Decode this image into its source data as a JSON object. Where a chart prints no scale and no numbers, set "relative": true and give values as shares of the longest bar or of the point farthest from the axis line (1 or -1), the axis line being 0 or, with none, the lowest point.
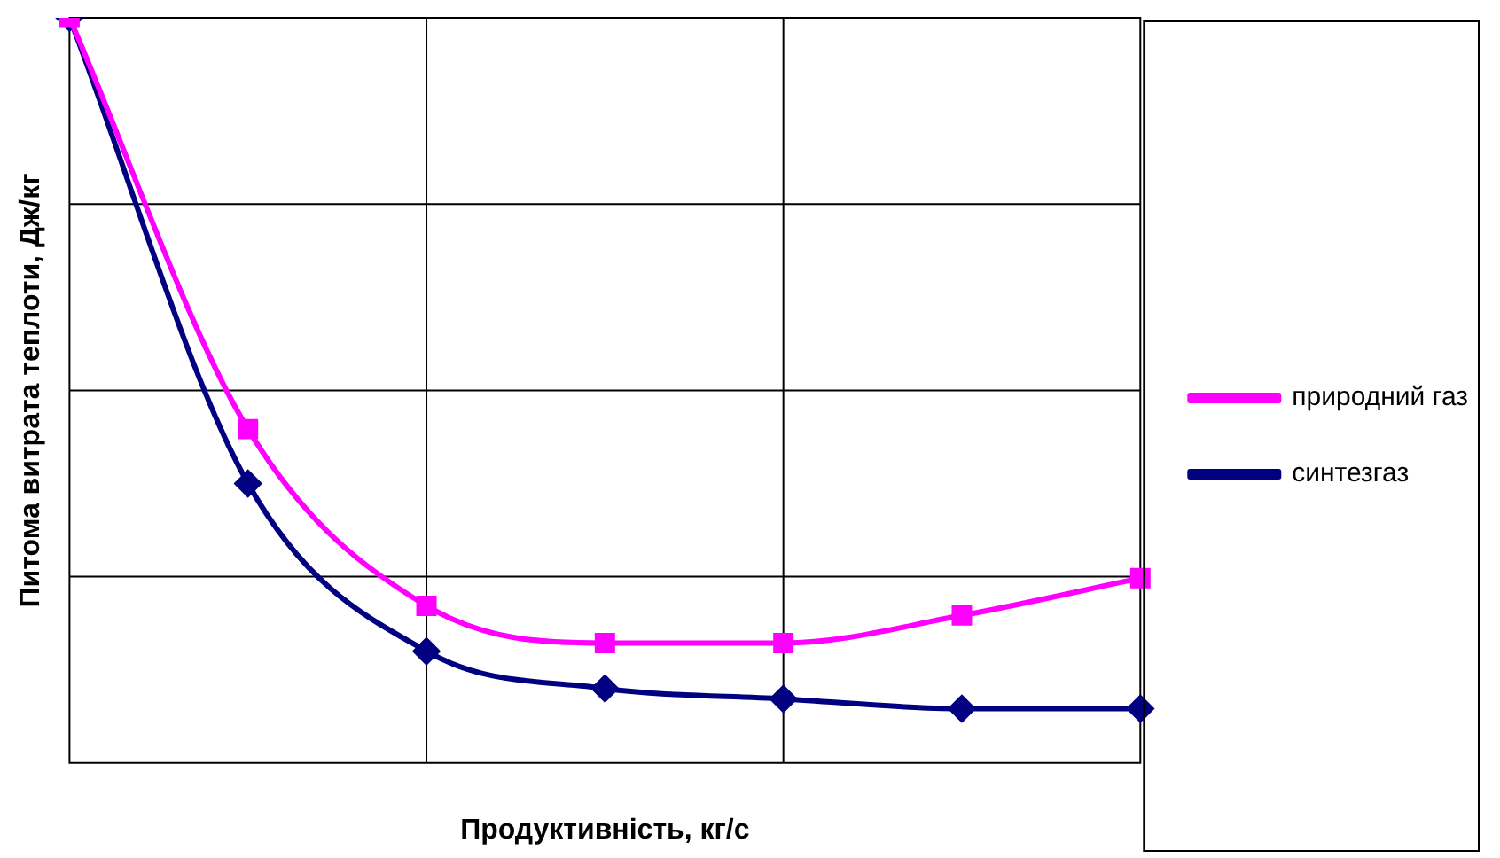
{
  "chart_data": {
    "type": "line",
    "relative": true,
    "xlabel": "Продуктивність, кг/с",
    "ylabel": "Питома витрата теплоти, Дж/кг",
    "categories": [
      null,
      null,
      null,
      null,
      null,
      null,
      null
    ],
    "grid": true,
    "legend": "right",
    "line_style": "solid",
    "series": [
      {
        "name": "синтезгаз",
        "color": "#000080",
        "marker": "diamond",
        "values": [
          1.0,
          0.375,
          0.15,
          0.1,
          0.086,
          0.073,
          0.073
        ]
      },
      {
        "name": "природний газ",
        "color": "#ff00ff",
        "marker": "square",
        "values": [
          1.0,
          0.448,
          0.211,
          0.161,
          0.161,
          0.198,
          0.248
        ]
      }
    ]
  }
}
